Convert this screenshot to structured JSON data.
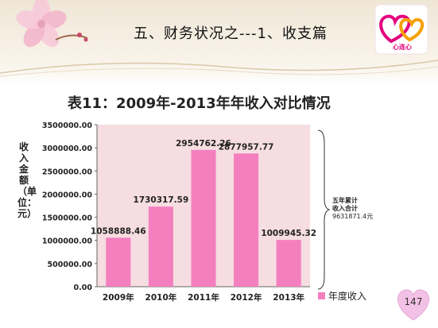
{
  "slide": {
    "title": "五、财务状况之---1、收支篇",
    "page_number": "147",
    "logo_text": "心连心"
  },
  "chart_data": {
    "type": "bar",
    "title": "表11：2009年-2013年年收入对比情况",
    "categories": [
      "2009年",
      "2010年",
      "2011年",
      "2012年",
      "2013年"
    ],
    "values": [
      1058888.46,
      1730317.59,
      2954762.26,
      2877957.77,
      1009945.32
    ],
    "value_labels": [
      "1058888.46",
      "1730317.59",
      "2954762.26",
      "2877957.77",
      "1009945.32"
    ],
    "ylabel": "收入金额（单位：元）",
    "ylim": [
      0,
      3500000
    ],
    "yticks": [
      "0.00",
      "500000.00",
      "1000000.00",
      "1500000.00",
      "2000000.00",
      "2500000.00",
      "3000000.00",
      "3500000.00"
    ],
    "series": [
      {
        "name": "年度收入",
        "color": "#f47fbf"
      }
    ],
    "legend_position": "bottom-right",
    "grid": false,
    "plot_background": "#f6dde1",
    "annotation": {
      "line1": "五年累计",
      "line2": "收入合计",
      "value": "9631871.4元"
    }
  }
}
